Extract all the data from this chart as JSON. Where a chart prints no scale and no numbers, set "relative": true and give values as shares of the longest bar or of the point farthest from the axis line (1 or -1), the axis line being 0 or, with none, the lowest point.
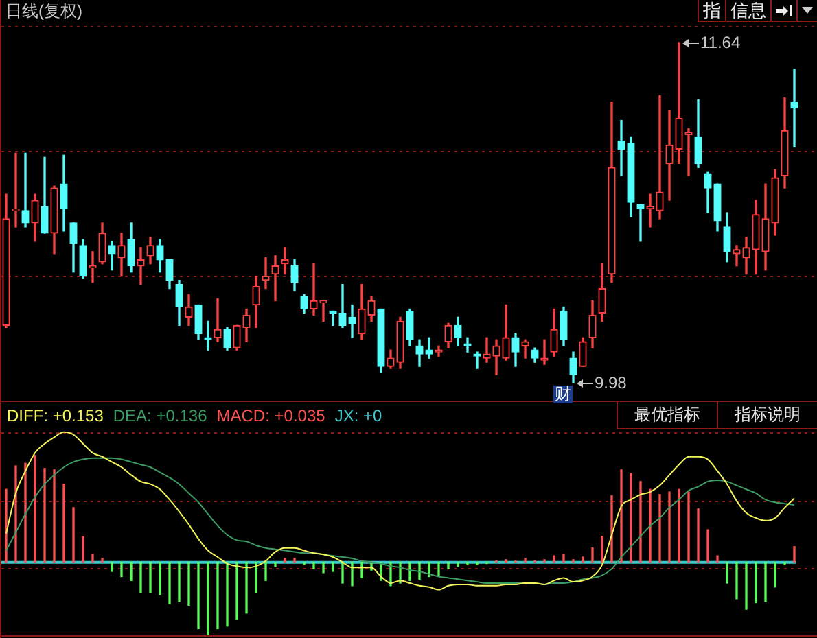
{
  "chart_data": [
    {
      "type": "candlestick",
      "title": "日线(复权)",
      "categories": [
        null,
        null,
        null,
        null,
        null,
        null,
        null,
        null,
        null,
        null,
        null,
        null,
        null,
        null,
        null,
        null,
        null,
        null,
        null,
        null,
        null,
        null,
        null,
        null,
        null,
        null,
        null,
        null,
        null,
        null,
        null,
        null,
        null,
        null,
        null,
        null,
        null,
        null,
        null,
        null,
        null,
        null,
        null,
        null,
        null,
        null,
        null,
        null,
        null,
        null,
        null,
        null,
        null,
        null,
        null,
        null,
        null,
        null,
        null,
        null,
        null,
        null,
        null,
        null,
        null,
        null,
        null,
        null,
        null,
        null,
        null,
        null,
        null,
        null,
        null,
        null,
        null,
        null,
        null,
        null,
        null,
        null,
        null
      ],
      "ohlc": [
        [
          10.26,
          10.9,
          10.25,
          10.78
        ],
        [
          10.82,
          11.1,
          10.74,
          10.82
        ],
        [
          10.82,
          11.1,
          10.74,
          10.76
        ],
        [
          10.76,
          10.9,
          10.67,
          10.87
        ],
        [
          10.84,
          11.08,
          10.71,
          10.71
        ],
        [
          10.71,
          10.94,
          10.61,
          10.93
        ],
        [
          10.95,
          11.09,
          10.72,
          10.83
        ],
        [
          10.76,
          10.76,
          10.52,
          10.66
        ],
        [
          10.65,
          10.68,
          10.49,
          10.5
        ],
        [
          10.54,
          10.62,
          10.47,
          10.55
        ],
        [
          10.57,
          10.76,
          10.56,
          10.71
        ],
        [
          10.65,
          10.67,
          10.53,
          10.61
        ],
        [
          10.59,
          10.71,
          10.5,
          10.65
        ],
        [
          10.68,
          10.76,
          10.52,
          10.55
        ],
        [
          10.55,
          10.64,
          10.46,
          10.58
        ],
        [
          10.6,
          10.69,
          10.56,
          10.65
        ],
        [
          10.65,
          10.68,
          10.52,
          10.58
        ],
        [
          10.58,
          10.58,
          10.44,
          10.48
        ],
        [
          10.46,
          10.48,
          10.26,
          10.35
        ],
        [
          10.3,
          10.41,
          10.26,
          10.35
        ],
        [
          10.36,
          10.36,
          10.19,
          10.22
        ],
        [
          10.2,
          10.28,
          10.14,
          10.19
        ],
        [
          10.2,
          10.39,
          10.18,
          10.24
        ],
        [
          10.24,
          10.25,
          10.14,
          10.15
        ],
        [
          10.15,
          10.26,
          10.14,
          10.26
        ],
        [
          10.25,
          10.34,
          10.18,
          10.31
        ],
        [
          10.36,
          10.5,
          10.25,
          10.45
        ],
        [
          10.48,
          10.59,
          10.44,
          10.5
        ],
        [
          10.51,
          10.6,
          10.38,
          10.55
        ],
        [
          10.56,
          10.64,
          10.51,
          10.58
        ],
        [
          10.55,
          10.58,
          10.43,
          10.47
        ],
        [
          10.4,
          10.41,
          10.32,
          10.34
        ],
        [
          10.34,
          10.56,
          10.31,
          10.38
        ],
        [
          10.37,
          10.38,
          10.28,
          10.38
        ],
        [
          10.33,
          10.33,
          10.26,
          10.32
        ],
        [
          10.32,
          10.46,
          10.25,
          10.26
        ],
        [
          10.3,
          10.36,
          10.2,
          10.27
        ],
        [
          10.22,
          10.46,
          10.19,
          10.34
        ],
        [
          10.31,
          10.4,
          10.28,
          10.38
        ],
        [
          10.34,
          10.34,
          10.03,
          10.06
        ],
        [
          10.06,
          10.14,
          10.05,
          10.1
        ],
        [
          10.08,
          10.3,
          10.05,
          10.28
        ],
        [
          10.33,
          10.34,
          10.16,
          10.19
        ],
        [
          10.16,
          10.19,
          10.06,
          10.12
        ],
        [
          10.14,
          10.2,
          10.1,
          10.12
        ],
        [
          10.13,
          10.16,
          10.11,
          10.14
        ],
        [
          10.18,
          10.27,
          10.15,
          10.26
        ],
        [
          10.26,
          10.3,
          10.16,
          10.2
        ],
        [
          10.17,
          10.2,
          10.13,
          10.16
        ],
        [
          10.12,
          10.13,
          10.05,
          10.11
        ],
        [
          10.1,
          10.2,
          10.08,
          10.12
        ],
        [
          10.11,
          10.19,
          10.02,
          10.16
        ],
        [
          10.1,
          10.36,
          10.09,
          10.2
        ],
        [
          10.2,
          10.22,
          10.06,
          10.13
        ],
        [
          10.16,
          10.19,
          10.1,
          10.18
        ],
        [
          10.14,
          10.15,
          10.08,
          10.1
        ],
        [
          10.09,
          10.19,
          10.07,
          10.1
        ],
        [
          10.13,
          10.34,
          10.11,
          10.24
        ],
        [
          10.33,
          10.35,
          10.16,
          10.19
        ],
        [
          10.1,
          10.13,
          9.98,
          10.02
        ],
        [
          10.06,
          10.2,
          10.06,
          10.18
        ],
        [
          10.2,
          10.38,
          10.15,
          10.31
        ],
        [
          10.32,
          10.56,
          10.28,
          10.44
        ],
        [
          10.51,
          11.35,
          10.47,
          11.03
        ],
        [
          11.16,
          11.26,
          10.99,
          11.12
        ],
        [
          11.15,
          11.18,
          10.79,
          10.86
        ],
        [
          10.85,
          10.85,
          10.67,
          10.83
        ],
        [
          10.83,
          10.9,
          10.74,
          10.84
        ],
        [
          10.82,
          11.38,
          10.78,
          10.91
        ],
        [
          11.05,
          11.31,
          10.87,
          11.14
        ],
        [
          11.12,
          11.64,
          11.05,
          11.27
        ],
        [
          11.19,
          11.22,
          10.99,
          11.2
        ],
        [
          11.18,
          11.36,
          11.03,
          11.05
        ],
        [
          11.0,
          11.01,
          10.81,
          10.93
        ],
        [
          10.95,
          10.95,
          10.72,
          10.77
        ],
        [
          10.74,
          10.81,
          10.57,
          10.62
        ],
        [
          10.61,
          10.65,
          10.55,
          10.63
        ],
        [
          10.59,
          10.69,
          10.51,
          10.64
        ],
        [
          10.63,
          10.87,
          10.51,
          10.8
        ],
        [
          10.62,
          10.95,
          10.53,
          10.78
        ],
        [
          10.76,
          11.02,
          10.7,
          10.98
        ],
        [
          10.99,
          11.37,
          10.93,
          11.21
        ],
        [
          11.35,
          11.51,
          11.13,
          11.32
        ]
      ],
      "colors": [
        "#ff4040",
        "#ff4040",
        "#54fcfc",
        "#ff4040",
        "#54fcfc",
        "#ff4040",
        "#54fcfc",
        "#54fcfc",
        "#54fcfc",
        "#ff4040",
        "#ff4040",
        "#54fcfc",
        "#ff4040",
        "#54fcfc",
        "#ff4040",
        "#ff4040",
        "#54fcfc",
        "#54fcfc",
        "#54fcfc",
        "#ff4040",
        "#54fcfc",
        "#54fcfc",
        "#ff4040",
        "#54fcfc",
        "#ff4040",
        "#ff4040",
        "#ff4040",
        "#ff4040",
        "#ff4040",
        "#ff4040",
        "#54fcfc",
        "#54fcfc",
        "#ff4040",
        "#ff4040",
        "#54fcfc",
        "#54fcfc",
        "#54fcfc",
        "#ff4040",
        "#ff4040",
        "#54fcfc",
        "#ff4040",
        "#ff4040",
        "#54fcfc",
        "#54fcfc",
        "#54fcfc",
        "#ff4040",
        "#ff4040",
        "#54fcfc",
        "#54fcfc",
        "#54fcfc",
        "#ff4040",
        "#ff4040",
        "#ff4040",
        "#54fcfc",
        "#ff4040",
        "#54fcfc",
        "#ff4040",
        "#ff4040",
        "#54fcfc",
        "#54fcfc",
        "#ff4040",
        "#ff4040",
        "#ff4040",
        "#ff4040",
        "#54fcfc",
        "#54fcfc",
        "#54fcfc",
        "#ff4040",
        "#ff4040",
        "#ff4040",
        "#ff4040",
        "#ff4040",
        "#54fcfc",
        "#54fcfc",
        "#54fcfc",
        "#54fcfc",
        "#ff4040",
        "#ff4040",
        "#ff4040",
        "#ff4040",
        "#ff4040",
        "#ff4040",
        "#54fcfc"
      ],
      "yticks": [
        {
          "value": 10.5,
          "label": null
        },
        {
          "value": 11.11,
          "label": null
        },
        {
          "value": 11.72,
          "label": null
        }
      ],
      "annotations": [
        "指",
        "信息",
        "11.64",
        "9.98",
        "财"
      ],
      "grid": true,
      "tick_labels": false
    },
    {
      "type": "line",
      "categories": [
        null,
        null,
        null,
        null,
        null,
        null,
        null,
        null,
        null,
        null,
        null,
        null,
        null,
        null,
        null,
        null,
        null,
        null,
        null,
        null,
        null,
        null,
        null,
        null,
        null,
        null,
        null,
        null,
        null,
        null,
        null,
        null,
        null,
        null,
        null,
        null,
        null,
        null,
        null,
        null,
        null,
        null,
        null,
        null,
        null,
        null,
        null,
        null,
        null,
        null,
        null,
        null,
        null,
        null,
        null,
        null,
        null,
        null,
        null,
        null,
        null,
        null,
        null,
        null,
        null,
        null,
        null,
        null,
        null,
        null,
        null,
        null,
        null,
        null,
        null,
        null,
        null,
        null,
        null,
        null,
        null,
        null,
        null
      ],
      "series": [
        {
          "name": "DIFF: +0.153",
          "type": "line",
          "color": "#f4f45a",
          "values": [
            0.22,
            0.53,
            0.7,
            0.84,
            0.91,
            0.96,
            1.0,
            0.98,
            0.91,
            0.84,
            0.81,
            0.77,
            0.73,
            0.67,
            0.62,
            0.6,
            0.56,
            0.48,
            0.39,
            0.29,
            0.18,
            0.09,
            0.04,
            -0.01,
            -0.03,
            -0.04,
            -0.03,
            0.01,
            0.08,
            0.11,
            0.11,
            0.09,
            0.07,
            0.06,
            0.04,
            0.0,
            -0.04,
            -0.04,
            -0.04,
            -0.11,
            -0.16,
            -0.14,
            -0.16,
            -0.18,
            -0.19,
            -0.21,
            -0.18,
            -0.17,
            -0.17,
            -0.18,
            -0.18,
            -0.18,
            -0.17,
            -0.17,
            -0.16,
            -0.16,
            -0.17,
            -0.14,
            -0.12,
            -0.15,
            -0.14,
            -0.11,
            -0.02,
            0.21,
            0.43,
            0.48,
            0.52,
            0.54,
            0.59,
            0.67,
            0.75,
            0.81,
            0.81,
            0.79,
            0.7,
            0.6,
            0.47,
            0.38,
            0.34,
            0.32,
            0.34,
            0.42,
            0.49
          ]
        },
        {
          "name": "DEA: +0.136",
          "type": "line",
          "color": "#3c9c64",
          "values": [
            0.09,
            0.23,
            0.37,
            0.5,
            0.6,
            0.67,
            0.73,
            0.77,
            0.79,
            0.8,
            0.8,
            0.8,
            0.79,
            0.77,
            0.75,
            0.73,
            0.69,
            0.65,
            0.6,
            0.53,
            0.46,
            0.37,
            0.28,
            0.21,
            0.17,
            0.16,
            0.13,
            0.11,
            0.1,
            0.09,
            0.08,
            0.07,
            0.07,
            0.06,
            0.05,
            0.04,
            0.03,
            0.01,
            0.0,
            -0.01,
            -0.03,
            -0.04,
            -0.06,
            -0.07,
            -0.09,
            -0.11,
            -0.12,
            -0.13,
            -0.14,
            -0.15,
            -0.16,
            -0.16,
            -0.16,
            -0.16,
            -0.16,
            -0.16,
            -0.17,
            -0.16,
            -0.16,
            -0.15,
            -0.13,
            -0.12,
            -0.1,
            -0.05,
            0.04,
            0.12,
            0.2,
            0.28,
            0.34,
            0.42,
            0.48,
            0.55,
            0.58,
            0.62,
            0.63,
            0.62,
            0.59,
            0.56,
            0.53,
            0.48,
            0.46,
            0.45,
            0.44
          ]
        },
        {
          "name": "MACD: +0.035",
          "type": "bar",
          "color": "#ff5050",
          "values": [
            0.56,
            0.74,
            0.76,
            0.82,
            0.72,
            0.71,
            0.6,
            0.42,
            0.2,
            0.06,
            0.03,
            -0.07,
            -0.11,
            -0.14,
            -0.23,
            -0.23,
            -0.25,
            -0.32,
            -0.3,
            -0.33,
            -0.51,
            -0.56,
            -0.51,
            -0.49,
            -0.44,
            -0.39,
            -0.23,
            -0.14,
            -0.03,
            0.03,
            0.03,
            -0.02,
            -0.05,
            -0.08,
            -0.07,
            -0.16,
            -0.18,
            -0.12,
            -0.06,
            -0.14,
            -0.18,
            -0.16,
            -0.14,
            -0.13,
            -0.11,
            -0.1,
            -0.05,
            -0.03,
            -0.02,
            -0.02,
            -0.01,
            0.01,
            0.02,
            0.01,
            0.03,
            0.01,
            0.02,
            0.05,
            0.06,
            0.02,
            0.04,
            0.11,
            0.2,
            0.51,
            0.71,
            0.68,
            0.62,
            0.56,
            0.52,
            0.54,
            0.56,
            0.54,
            0.41,
            0.25,
            0.05,
            -0.16,
            -0.28,
            -0.36,
            -0.31,
            -0.3,
            -0.19,
            -0.02,
            0.12
          ],
          "colors": [
            "#ff5050",
            "#ff5050",
            "#ff5050",
            "#ff5050",
            "#ff5050",
            "#ff5050",
            "#ff5050",
            "#ff5050",
            "#ff5050",
            "#ff5050",
            "#ff5050",
            "#54ff54",
            "#54ff54",
            "#54ff54",
            "#54ff54",
            "#54ff54",
            "#54ff54",
            "#54ff54",
            "#54ff54",
            "#54ff54",
            "#54ff54",
            "#54ff54",
            "#54ff54",
            "#54ff54",
            "#54ff54",
            "#54ff54",
            "#54ff54",
            "#54ff54",
            "#54ff54",
            "#ff5050",
            "#ff5050",
            "#54ff54",
            "#54ff54",
            "#54ff54",
            "#54ff54",
            "#54ff54",
            "#54ff54",
            "#54ff54",
            "#54ff54",
            "#54ff54",
            "#54ff54",
            "#54ff54",
            "#54ff54",
            "#54ff54",
            "#54ff54",
            "#54ff54",
            "#54ff54",
            "#54ff54",
            "#54ff54",
            "#54ff54",
            "#54ff54",
            "#ff5050",
            "#ff5050",
            "#ff5050",
            "#ff5050",
            "#ff5050",
            "#ff5050",
            "#ff5050",
            "#ff5050",
            "#ff5050",
            "#ff5050",
            "#ff5050",
            "#ff5050",
            "#ff5050",
            "#ff5050",
            "#ff5050",
            "#ff5050",
            "#ff5050",
            "#ff5050",
            "#ff5050",
            "#ff5050",
            "#ff5050",
            "#ff5050",
            "#ff5050",
            "#ff5050",
            "#54ff54",
            "#54ff54",
            "#54ff54",
            "#54ff54",
            "#54ff54",
            "#54ff54",
            "#54ff54",
            "#ff5050"
          ]
        }
      ],
      "relative": true,
      "ref_lines": [
        {
          "axis": "y",
          "value": 0,
          "label": "JX: +0",
          "color": "#3cc8c8"
        },
        {
          "axis": "y",
          "value": 1.0,
          "color": "#8b1a1a",
          "line_style": "dotted"
        },
        {
          "axis": "y",
          "value": 0.47,
          "color": "#8b1a1a",
          "line_style": "dotted"
        },
        {
          "axis": "y",
          "value": -0.04,
          "color": "#8b1a1a",
          "line_style": "dotted"
        }
      ],
      "annotations": [
        "最优指标",
        "指标说明"
      ],
      "legend": "top left",
      "tick_labels": false
    }
  ]
}
